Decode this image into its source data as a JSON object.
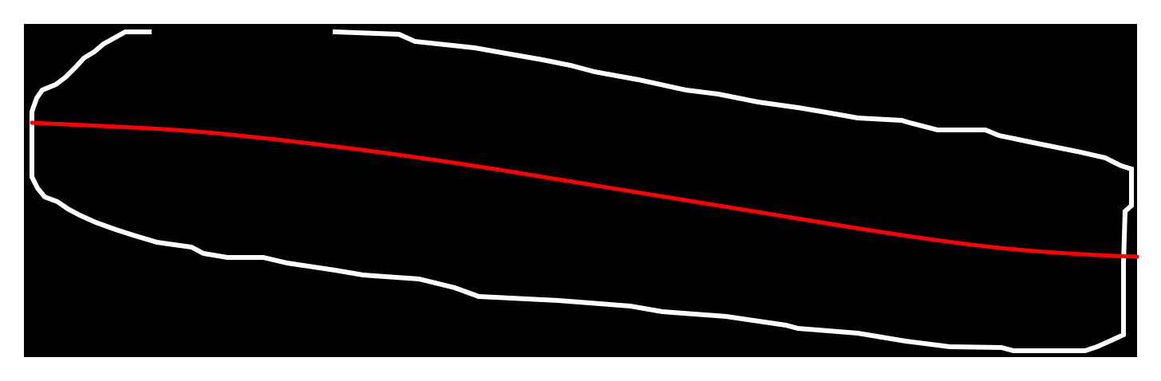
{
  "figure": {
    "background_color": "#ffffff",
    "panel_color": "#000000",
    "outline_color": "#ffffff",
    "midline_color": "#ff0000"
  },
  "shapes": {
    "outline": {
      "description_color": "#ffffff"
    },
    "midline": {
      "color": "#ff0000"
    }
  }
}
